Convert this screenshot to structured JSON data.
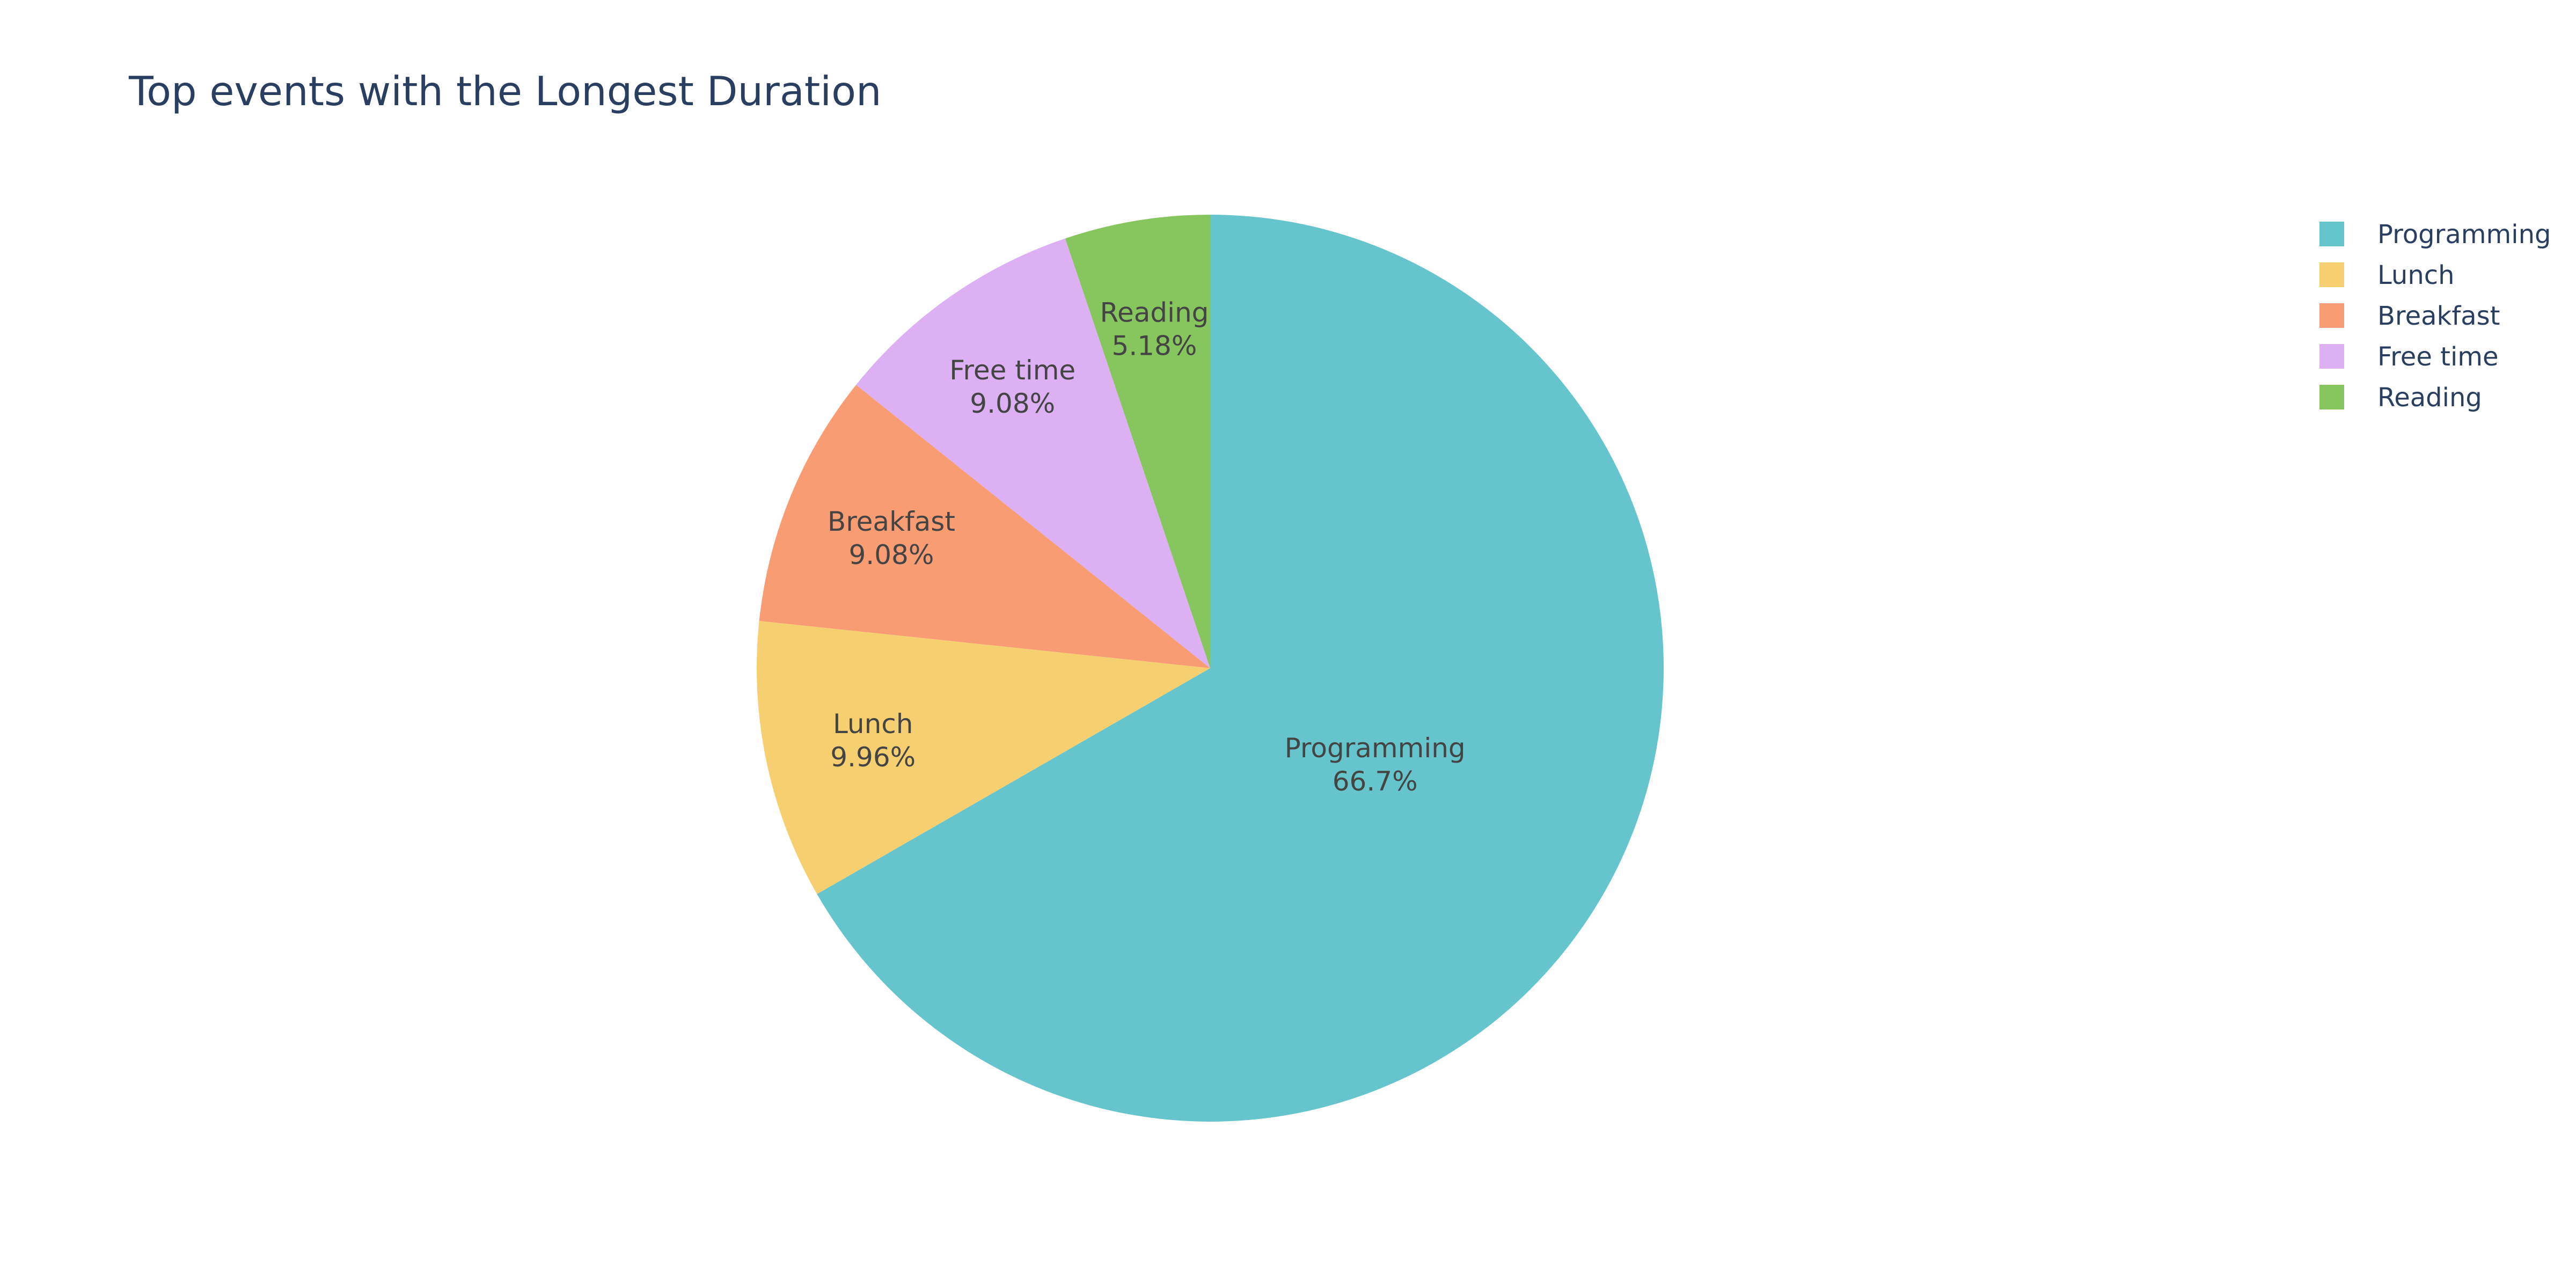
{
  "chart_data": {
    "type": "pie",
    "title": "Top events with the Longest Duration",
    "legend_position": "top-right",
    "slices": [
      {
        "label": "Programming",
        "value": 66.7,
        "display_percent": "66.7%",
        "color": "#66c5cc"
      },
      {
        "label": "Lunch",
        "value": 9.96,
        "display_percent": "9.96%",
        "color": "#f6cf71"
      },
      {
        "label": "Breakfast",
        "value": 9.08,
        "display_percent": "9.08%",
        "color": "#f89c74"
      },
      {
        "label": "Free time",
        "value": 9.08,
        "display_percent": "9.08%",
        "color": "#dcb0f2"
      },
      {
        "label": "Reading",
        "value": 5.18,
        "display_percent": "5.18%",
        "color": "#87c55f"
      }
    ]
  }
}
